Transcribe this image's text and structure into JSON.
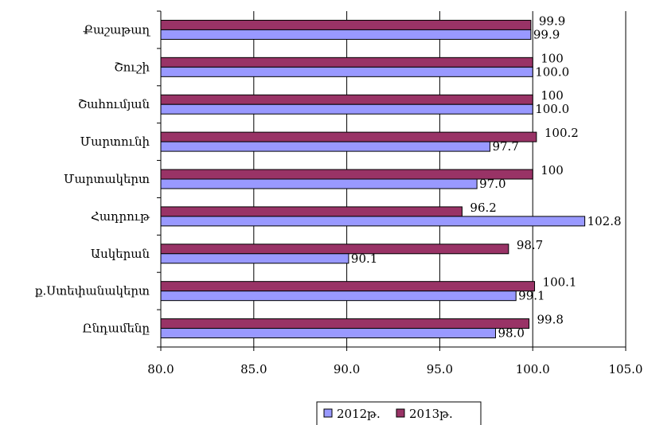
{
  "chart_data": {
    "type": "bar",
    "orientation": "horizontal",
    "categories": [
      "Քաշաթաղ",
      "Շուշի",
      "Շահումյան",
      "Մարտունի",
      "Մարտակերտ",
      "Հադրութ",
      "Ասկերան",
      "ք.Ստեփանակերտ",
      "Ընդամենը"
    ],
    "series": [
      {
        "name": "2012թ.",
        "color": "#9999ff",
        "values": [
          99.9,
          100.0,
          100.0,
          97.7,
          97.0,
          102.8,
          90.1,
          99.1,
          98.0
        ],
        "labels": [
          "99.9",
          "100.0",
          "100.0",
          "97.7",
          "97.0",
          "102.8",
          "90.1",
          "99.1",
          "98.0"
        ]
      },
      {
        "name": "2013թ.",
        "color": "#993366",
        "values": [
          99.9,
          100,
          100,
          100.2,
          100,
          96.2,
          98.7,
          100.1,
          99.8
        ],
        "labels": [
          "99.9",
          "100",
          "100",
          "100.2",
          "100",
          "96.2",
          "98.7",
          "100.1",
          "99.8"
        ]
      }
    ],
    "xlim": [
      80.0,
      105.0
    ],
    "xticks": [
      "80.0",
      "85.0",
      "90.0",
      "95.0",
      "100.0",
      "105.0"
    ],
    "grid": true,
    "legend_position": "bottom"
  }
}
